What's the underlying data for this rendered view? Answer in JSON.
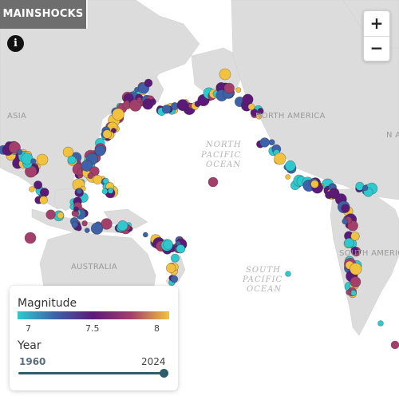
{
  "title": "MAINSHOCKS",
  "info_glyph": "i",
  "zoom": {
    "in_label": "+",
    "out_label": "−"
  },
  "legend": {
    "magnitude_label": "Magnitude",
    "magnitude_ticks": [
      "7",
      "7.5",
      "8"
    ],
    "colors": [
      "#2ec9cf",
      "#3d62a7",
      "#5c1a78",
      "#a43f6b",
      "#f2c23e"
    ],
    "year_label": "Year",
    "year_start": "1960",
    "year_end": "2024",
    "year_selected_fraction": 1.0
  },
  "map_labels": {
    "asia": "ASIA",
    "north_america": "NORTH AMERICA",
    "north_pacific_line1": "NORTH",
    "north_pacific_line2": "PACIFIC",
    "north_pacific_line3": "OCEAN",
    "south_pacific_line1": "SOUTH",
    "south_pacific_line2": "PACIFIC",
    "south_pacific_line3": "OCEAN",
    "australia": "AUSTRALIA",
    "south_america": "SOUTH AMERICA",
    "north_america_edge": "N A"
  },
  "land_color": "#dcdcdc",
  "ocean_color": "#ffffff"
}
